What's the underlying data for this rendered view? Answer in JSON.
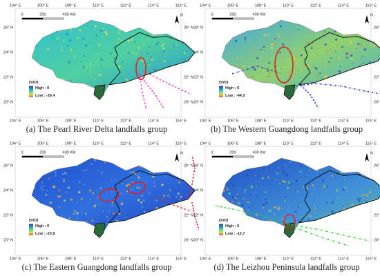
{
  "lon_ticks": [
    "104° E",
    "106° E",
    "108° E",
    "110° E",
    "112° E",
    "114° E",
    "116° E"
  ],
  "lat_ticks": [
    "26° N",
    "24° N",
    "22° N",
    "20° N"
  ],
  "scale": [
    "0",
    "200",
    "400 KM"
  ],
  "north": "N",
  "legend_title": "DVDI",
  "panels": [
    {
      "caption": "(a) The Pearl River Delta landfalls group",
      "high": "High : 0",
      "low": "Low : -26.4",
      "track_color": "#e040e0"
    },
    {
      "caption": "(b) The Western Guangdong landfalls group",
      "high": "High : 0",
      "low": "Low : -44.5",
      "track_color": "#2030e0"
    },
    {
      "caption": "(c) The Eastern Guangdong landfalls group",
      "high": "High : 0",
      "low": "Low : -23.8",
      "track_color": "#e02020"
    },
    {
      "caption": "(d) The Leizhou Peninsula landfalls group",
      "high": "High : 0",
      "low": "Low : -12.7",
      "track_color": "#20d020"
    }
  ]
}
